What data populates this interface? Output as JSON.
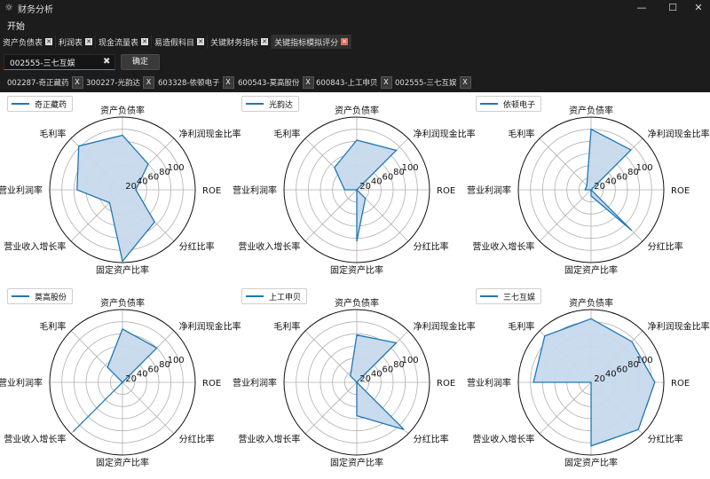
{
  "window": {
    "title": "财务分析",
    "minimize": "—",
    "maximize": "☐",
    "close": "✕"
  },
  "menu": {
    "start": "开始"
  },
  "tabs": [
    {
      "label": "资产负债表",
      "active": false
    },
    {
      "label": "利润表",
      "active": false
    },
    {
      "label": "现金流量表",
      "active": false
    },
    {
      "label": "易造假科目",
      "active": false
    },
    {
      "label": "关键财务指标",
      "active": false
    },
    {
      "label": "关键指标模拟评分",
      "active": true
    }
  ],
  "search": {
    "value": "002555-三七互娱",
    "clear": "✖",
    "confirm_label": "确定"
  },
  "chips": [
    {
      "label": "002287-奇正藏药"
    },
    {
      "label": "300227-光韵达"
    },
    {
      "label": "603328-依顿电子"
    },
    {
      "label": "600543-莫高股份"
    },
    {
      "label": "600843-上工申贝"
    },
    {
      "label": "002555-三七互娱"
    }
  ],
  "chip_close": "X",
  "chart_data": {
    "type": "radar",
    "axes": [
      "ROE",
      "净利润现金比率",
      "资产负债率",
      "毛利率",
      "营业利润率",
      "营业收入增长率",
      "固定资产比率",
      "分红比率"
    ],
    "rlim": [
      0,
      120
    ],
    "rticks": [
      "20",
      "40",
      "60",
      "80",
      "100"
    ],
    "color": "#1f77b4",
    "fill": "#c6d9ec",
    "charts": [
      {
        "name": "奇正藏药",
        "values": [
          22,
          60,
          90,
          102,
          75,
          30,
          118,
          75
        ]
      },
      {
        "name": "光韵达",
        "values": [
          0,
          92,
          82,
          52,
          20,
          0,
          85,
          20
        ]
      },
      {
        "name": "依顿电子",
        "values": [
          0,
          93,
          100,
          10,
          10,
          0,
          10,
          95
        ]
      },
      {
        "name": "莫高股份",
        "values": [
          0,
          80,
          88,
          35,
          0,
          115,
          0,
          0
        ]
      },
      {
        "name": "上工申贝",
        "values": [
          0,
          92,
          78,
          15,
          0,
          0,
          55,
          110
        ]
      },
      {
        "name": "三七互娱",
        "values": [
          105,
          95,
          105,
          108,
          95,
          0,
          105,
          110
        ]
      }
    ]
  }
}
